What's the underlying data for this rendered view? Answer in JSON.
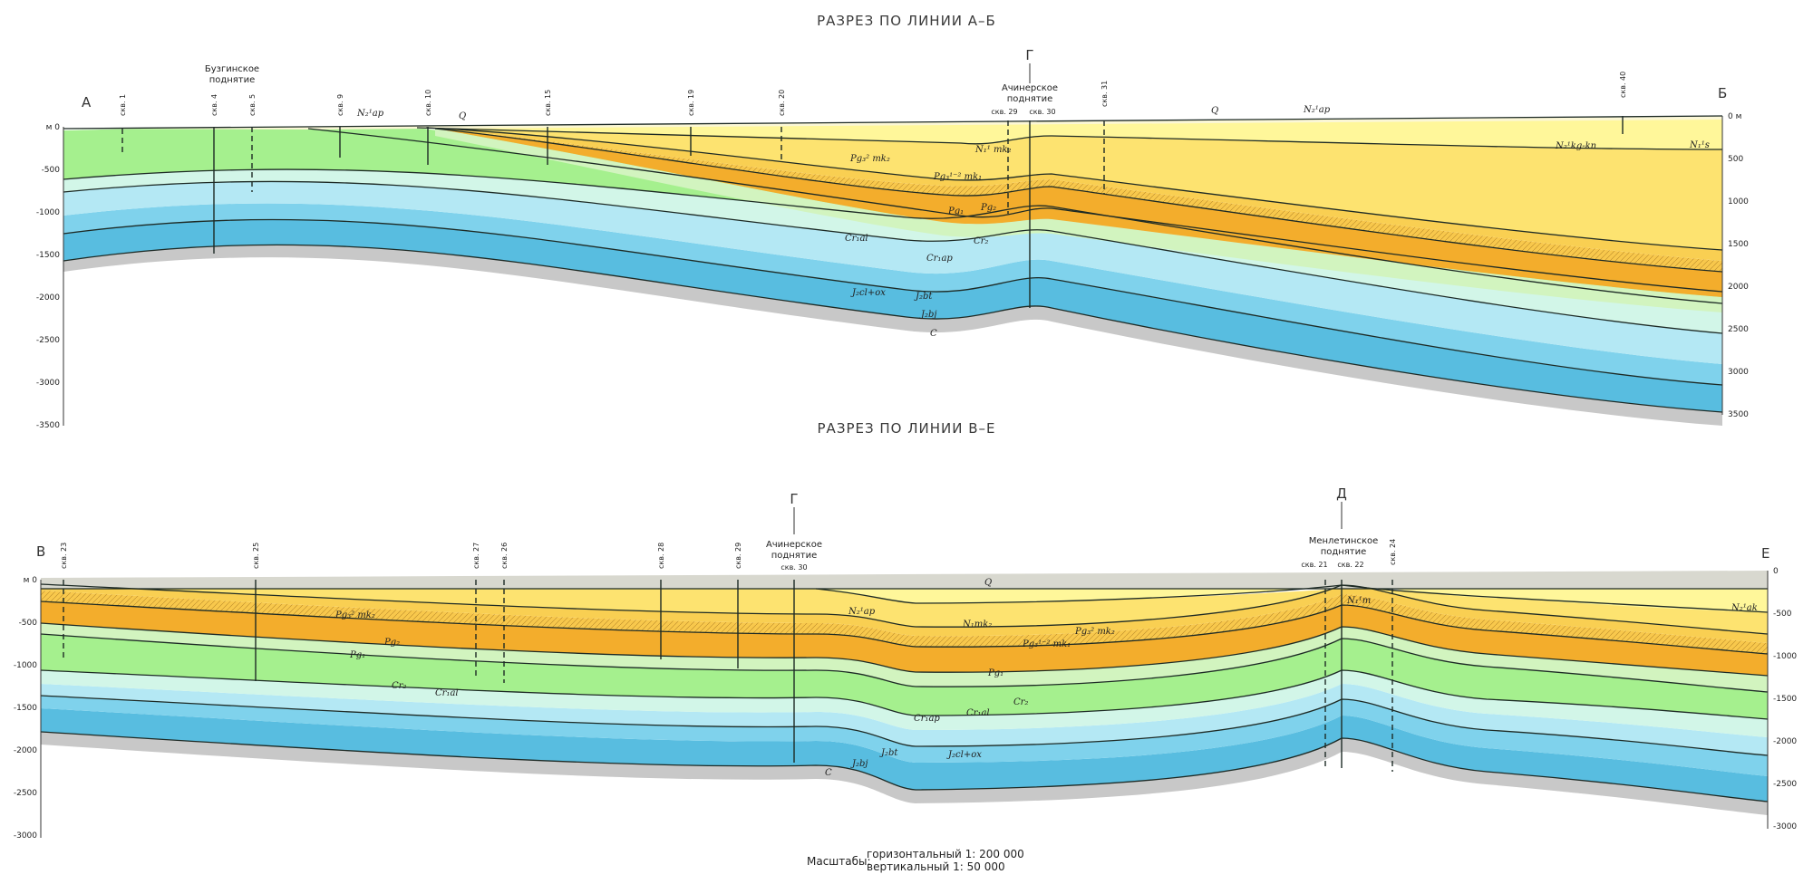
{
  "colors": {
    "q": "#fbf7d6",
    "n_light": "#fff79a",
    "n_yellow": "#fde370",
    "pg_mid": "#f9cf52",
    "pg_hatch": "#f8c84c",
    "pg_orange": "#f3ad2c",
    "cr2": "#d2f4bf",
    "cr1al": "#a5f08e",
    "cr1ap": "#d2f6e8",
    "j_light": "#b4e8f4",
    "j_mid": "#7fd2ec",
    "j_dark": "#58bde0",
    "c_gray": "#c8c8c8",
    "line": "#1d2a25"
  },
  "labels": {
    "title_ab": "РАЗРЕЗ ПО ЛИНИИ А–Б",
    "title_ve": "РАЗРЕЗ ПО ЛИНИИ В–Е",
    "scale_caption": "Масштабы:",
    "scale_h": "горизонтальный 1: 200 000",
    "scale_v": "вертикальный 1: 50 000"
  },
  "section_ab": {
    "start_letter": "А",
    "end_letter": "Б",
    "left_ticks": [
      "м 0",
      "-500",
      "-1000",
      "-1500",
      "-2000",
      "-2500",
      "-3000",
      "-3500"
    ],
    "right_ticks": [
      "0 м",
      "500",
      "1000",
      "1500",
      "2000",
      "2500",
      "3000",
      "3500"
    ],
    "wells": [
      "скв. 1",
      "скв. 4",
      "скв. 5",
      "скв. 9",
      "скв. 10",
      "скв. 15",
      "скв. 19",
      "скв. 20",
      "скв. 29",
      "скв. 30",
      "скв. 31",
      "скв. 40"
    ],
    "uplift_1_line1": "Бузгинское",
    "uplift_1_line2": "поднятие",
    "uplift_2_line1": "Ачинерское",
    "uplift_2_line2": "поднятие",
    "marker": "Г",
    "units": [
      "Q",
      "Q",
      "N₂¹ap",
      "N₂¹ap",
      "Pg₃² mk₂",
      "Pg₃¹⁻² mk₁",
      "N₁¹ mk₂",
      "Pg₁",
      "Pg₂",
      "Cr₂",
      "Cr₁al",
      "Cr₁ap",
      "J₂cl+ox",
      "J₂bt",
      "J₂bj",
      "C",
      "N₂¹kg-kn",
      "N₁¹s"
    ]
  },
  "section_ve": {
    "start_letter": "В",
    "end_letter": "Е",
    "left_ticks": [
      "м 0",
      "-500",
      "-1000",
      "-1500",
      "-2000",
      "-2500",
      "-3000"
    ],
    "right_ticks": [
      "0",
      "-500",
      "-1000",
      "-1500",
      "-2000",
      "-2500",
      "-3000"
    ],
    "wells": [
      "скв. 23",
      "скв. 25",
      "скв. 27",
      "скв. 26",
      "скв. 28",
      "скв. 29",
      "скв. 30",
      "скв. 21",
      "скв. 22",
      "скв. 24"
    ],
    "uplift_1_line1": "Ачинерское",
    "uplift_1_line2": "поднятие",
    "uplift_2_line1": "Менлетинское",
    "uplift_2_line2": "поднятие",
    "marker_1": "Г",
    "marker_2": "Д",
    "units": [
      "Q",
      "N₂¹ap",
      "N₁mk₂",
      "N₁¹m",
      "N₂¹ak",
      "Pg₃² mk₂",
      "Pg₂",
      "Pg₁",
      "Pg₃¹⁻² mk₁",
      "Pg₃² mk₂",
      "Pg₁",
      "Cr₂",
      "Cr₁al",
      "Cr₂",
      "Cr₁ap",
      "Cr₁al",
      "J₂bt",
      "J₂cl+ox",
      "J₂bj",
      "C"
    ]
  }
}
